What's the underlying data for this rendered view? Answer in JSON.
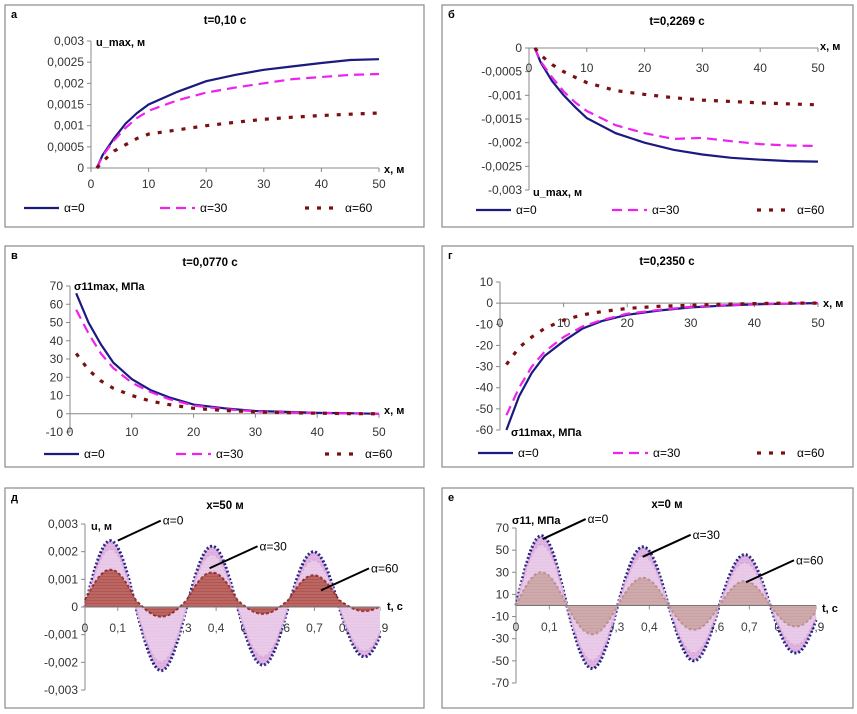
{
  "legend_labels": [
    "α=0",
    "α=30",
    "α=60"
  ],
  "series_colors": {
    "a0": "#1a1a80",
    "a30": "#ee22ee",
    "a60": "#7a1010",
    "band30": "#d9a3d9",
    "band60": "#b0504a",
    "band60_light": "#c8a0a0"
  },
  "chart_data": [
    {
      "panel": "а",
      "type": "line",
      "title": "t=0,10 с",
      "xlabel": "x, м",
      "ylabel": "u_max, м",
      "xlim": [
        0,
        50
      ],
      "ylim": [
        0,
        0.003
      ],
      "xticks": [
        0,
        10,
        20,
        30,
        40,
        50
      ],
      "xtick_labels": [
        "0",
        "10",
        "20",
        "30",
        "40",
        "50"
      ],
      "yticks": [
        0,
        0.0005,
        0.001,
        0.0015,
        0.002,
        0.0025,
        0.003
      ],
      "ytick_labels": [
        "0",
        "0,0005",
        "0,001",
        "0,0015",
        "0,002",
        "0,0025",
        "0,003"
      ],
      "legend": "bottom",
      "x": [
        1,
        2,
        4,
        6,
        8,
        10,
        15,
        20,
        25,
        30,
        35,
        40,
        45,
        50
      ],
      "series": [
        {
          "name": "α=0",
          "style": "solid",
          "values": [
            0,
            0.0003,
            0.0007,
            0.00105,
            0.0013,
            0.0015,
            0.0018,
            0.00205,
            0.0022,
            0.00232,
            0.0024,
            0.00248,
            0.00255,
            0.00257
          ]
        },
        {
          "name": "α=30",
          "style": "dashed",
          "values": [
            0,
            0.00028,
            0.00065,
            0.00095,
            0.00118,
            0.00135,
            0.0016,
            0.00178,
            0.0019,
            0.002,
            0.0021,
            0.00215,
            0.0022,
            0.00222
          ]
        },
        {
          "name": "α=60",
          "style": "dotted",
          "values": [
            0,
            0.00015,
            0.0004,
            0.00055,
            0.0007,
            0.0008,
            0.0009,
            0.001,
            0.00108,
            0.00115,
            0.0012,
            0.00124,
            0.00127,
            0.0013
          ]
        }
      ]
    },
    {
      "panel": "б",
      "type": "line",
      "title": "t=0,2269 с",
      "xlabel": "x, м",
      "ylabel": "u_max, м",
      "xlim": [
        0,
        50
      ],
      "ylim": [
        -0.003,
        0
      ],
      "xticks": [
        0,
        10,
        20,
        30,
        40,
        50
      ],
      "xtick_labels": [
        "0",
        "10",
        "20",
        "30",
        "40",
        "50"
      ],
      "yticks": [
        0,
        -0.0005,
        -0.001,
        -0.0015,
        -0.002,
        -0.0025,
        -0.003
      ],
      "ytick_labels": [
        "0",
        "-0,0005",
        "-0,001",
        "-0,0015",
        "-0,002",
        "-0,0025",
        "-0,003"
      ],
      "legend": "bottom",
      "x": [
        1,
        2,
        4,
        6,
        8,
        10,
        15,
        20,
        25,
        30,
        35,
        40,
        45,
        50
      ],
      "series": [
        {
          "name": "α=0",
          "style": "solid",
          "values": [
            0,
            -0.0003,
            -0.0007,
            -0.001,
            -0.00125,
            -0.00148,
            -0.0018,
            -0.002,
            -0.00215,
            -0.00225,
            -0.00232,
            -0.00236,
            -0.00239,
            -0.0024
          ]
        },
        {
          "name": "α=30",
          "style": "dashed",
          "values": [
            0,
            -0.00028,
            -0.00062,
            -0.00092,
            -0.00115,
            -0.00133,
            -0.00163,
            -0.0018,
            -0.00192,
            -0.0019,
            -0.00197,
            -0.00203,
            -0.00206,
            -0.00207
          ]
        },
        {
          "name": "α=60",
          "style": "dotted",
          "values": [
            0,
            -0.00015,
            -0.00035,
            -0.0005,
            -0.00062,
            -0.00073,
            -0.0009,
            -0.00098,
            -0.00105,
            -0.0011,
            -0.00113,
            -0.00116,
            -0.00118,
            -0.0012
          ]
        }
      ]
    },
    {
      "panel": "в",
      "type": "line",
      "title": "t=0,0770 с",
      "xlabel": "x, м",
      "ylabel": "σ11max, МПа",
      "xlim": [
        0,
        50
      ],
      "ylim": [
        -10,
        70
      ],
      "xticks": [
        0,
        10,
        20,
        30,
        40,
        50
      ],
      "xtick_labels": [
        "0",
        "10",
        "20",
        "30",
        "40",
        "50"
      ],
      "yticks": [
        -10,
        0,
        10,
        20,
        30,
        40,
        50,
        60,
        70
      ],
      "ytick_labels": [
        "-10",
        "0",
        "10",
        "20",
        "30",
        "40",
        "50",
        "60",
        "70"
      ],
      "legend": "bottom",
      "x": [
        1,
        3,
        5,
        7,
        10,
        13,
        16,
        20,
        25,
        30,
        35,
        40,
        45,
        50
      ],
      "series": [
        {
          "name": "α=0",
          "style": "solid",
          "values": [
            66,
            50,
            38,
            28,
            19,
            13,
            9,
            5,
            3,
            1.5,
            1,
            0.5,
            0.3,
            0
          ]
        },
        {
          "name": "α=30",
          "style": "dashed",
          "values": [
            57,
            44,
            33,
            25,
            17,
            12,
            8,
            4.5,
            2.5,
            1.3,
            0.8,
            0.4,
            0.2,
            0
          ]
        },
        {
          "name": "α=60",
          "style": "dotted",
          "values": [
            33,
            24,
            18,
            14,
            10,
            7,
            5,
            3,
            1.8,
            1,
            0.6,
            0.3,
            0.1,
            0
          ]
        }
      ]
    },
    {
      "panel": "г",
      "type": "line",
      "title": "t=0,2350 с",
      "xlabel": "x, м",
      "ylabel": "σ11max, МПа",
      "xlim": [
        0,
        50
      ],
      "ylim": [
        -60,
        10
      ],
      "xticks": [
        0,
        10,
        20,
        30,
        40,
        50
      ],
      "xtick_labels": [
        "0",
        "10",
        "20",
        "30",
        "40",
        "50"
      ],
      "yticks": [
        10,
        0,
        -10,
        -20,
        -30,
        -40,
        -50,
        -60
      ],
      "ytick_labels": [
        "10",
        "0",
        "-10",
        "-20",
        "-30",
        "-40",
        "-50",
        "-60"
      ],
      "legend": "bottom",
      "x": [
        1,
        3,
        5,
        7,
        10,
        13,
        16,
        20,
        25,
        30,
        35,
        40,
        45,
        50
      ],
      "series": [
        {
          "name": "α=0",
          "style": "solid",
          "values": [
            -60,
            -44,
            -33,
            -25,
            -18,
            -12,
            -8.5,
            -5.5,
            -3.5,
            -2,
            -1.2,
            -0.6,
            -0.2,
            0
          ]
        },
        {
          "name": "α=30",
          "style": "dashed",
          "values": [
            -53,
            -40,
            -30,
            -23,
            -16,
            -11,
            -8,
            -5,
            -3.2,
            -1.8,
            -1,
            -0.5,
            -0.2,
            0
          ]
        },
        {
          "name": "α=60",
          "style": "dotted",
          "values": [
            -29,
            -21,
            -16,
            -12,
            -8,
            -5.5,
            -4,
            -2.5,
            -1.5,
            -1,
            -0.5,
            -0.2,
            0,
            0
          ]
        }
      ]
    },
    {
      "panel": "д",
      "type": "area",
      "title": "x=50 м",
      "xlabel": "t, с",
      "ylabel": "u, м",
      "xlim": [
        0,
        0.9
      ],
      "ylim": [
        -0.003,
        0.003
      ],
      "xticks": [
        0,
        0.1,
        0.2,
        0.3,
        0.4,
        0.5,
        0.6,
        0.7,
        0.8,
        0.9
      ],
      "xtick_labels": [
        "0",
        "0,1",
        "0,2",
        "0,3",
        "0,4",
        "0,5",
        "0,6",
        "0,7",
        "0,8",
        "0,9"
      ],
      "yticks": [
        0.003,
        0.002,
        0.001,
        0,
        -0.001,
        -0.002,
        -0.003
      ],
      "ytick_labels": [
        "0,003",
        "0,002",
        "0,001",
        "0",
        "-0,001",
        "-0,002",
        "-0,003"
      ],
      "period": 0.31,
      "series": [
        {
          "name": "α=0",
          "peaks": [
            0.0024,
            0.0022,
            0.002
          ],
          "troughs": [
            -0.0023,
            -0.0021,
            -0.0018
          ],
          "offset": 0
        },
        {
          "name": "α=30",
          "peaks": [
            0.0021,
            0.0019,
            0.0017
          ],
          "troughs": [
            -0.002,
            -0.0018,
            -0.0016
          ],
          "offset": 0
        },
        {
          "name": "α=60",
          "peaks": [
            0.0011,
            0.001,
            0.0009
          ],
          "troughs": [
            -0.0006,
            -0.0005,
            -0.0004
          ],
          "offset": 0.00025
        }
      ],
      "annotations": [
        {
          "text": "α=0",
          "point": [
            0.1,
            0.0024
          ]
        },
        {
          "text": "α=30",
          "point": [
            0.38,
            0.0014
          ]
        },
        {
          "text": "α=60",
          "point": [
            0.72,
            0.0006
          ]
        }
      ]
    },
    {
      "panel": "е",
      "type": "area",
      "title": "x=0 м",
      "xlabel": "t, с",
      "ylabel": "σ11, МПа",
      "xlim": [
        0,
        0.9
      ],
      "ylim": [
        -70,
        70
      ],
      "xticks": [
        0,
        0.1,
        0.2,
        0.3,
        0.4,
        0.5,
        0.6,
        0.7,
        0.8,
        0.9
      ],
      "xtick_labels": [
        "0",
        "0,1",
        "0,2",
        "0,3",
        "0,4",
        "0,5",
        "0,6",
        "0,7",
        "0,8",
        "0,9"
      ],
      "yticks": [
        70,
        50,
        30,
        10,
        -10,
        -30,
        -50,
        -70
      ],
      "ytick_labels": [
        "70",
        "50",
        "30",
        "10",
        "-10",
        "-30",
        "-50",
        "-70"
      ],
      "period": 0.305,
      "series": [
        {
          "name": "α=0",
          "peaks": [
            63,
            53,
            46
          ],
          "troughs": [
            -57,
            -50,
            -43
          ],
          "offset": 0
        },
        {
          "name": "α=30",
          "peaks": [
            55,
            45,
            39
          ],
          "troughs": [
            -50,
            -43,
            -36
          ],
          "offset": 0
        },
        {
          "name": "α=60",
          "peaks": [
            30,
            25,
            22
          ],
          "troughs": [
            -26,
            -22,
            -19
          ],
          "offset": 0
        }
      ],
      "annotations": [
        {
          "text": "α=0",
          "point": [
            0.08,
            60
          ]
        },
        {
          "text": "α=30",
          "point": [
            0.38,
            44
          ]
        },
        {
          "text": "α=60",
          "point": [
            0.69,
            21
          ]
        }
      ]
    }
  ]
}
